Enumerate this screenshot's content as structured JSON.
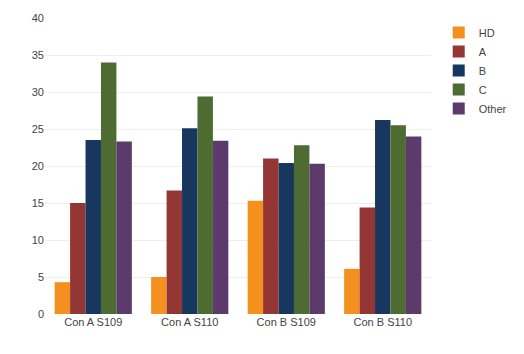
{
  "chart_data": {
    "type": "bar",
    "categories": [
      "Con A S109",
      "Con A S110",
      "Con B S109",
      "Con B S110"
    ],
    "series": [
      {
        "name": "HD",
        "color": "#F4901E",
        "values": [
          4.3,
          5.0,
          15.3,
          6.1
        ]
      },
      {
        "name": "A",
        "color": "#943634",
        "values": [
          15.0,
          16.7,
          21.0,
          14.4
        ]
      },
      {
        "name": "B",
        "color": "#17375E",
        "values": [
          23.5,
          25.1,
          20.4,
          26.2
        ]
      },
      {
        "name": "C",
        "color": "#4E6B31",
        "values": [
          34.0,
          29.4,
          22.8,
          25.5
        ]
      },
      {
        "name": "Other",
        "color": "#5C3A6B",
        "values": [
          23.3,
          23.4,
          20.3,
          24.0
        ]
      }
    ],
    "ylim": [
      0,
      40
    ],
    "yticks": [
      0,
      5,
      10,
      15,
      20,
      25,
      30,
      35,
      40
    ],
    "grid": true,
    "legend": "upper right"
  }
}
